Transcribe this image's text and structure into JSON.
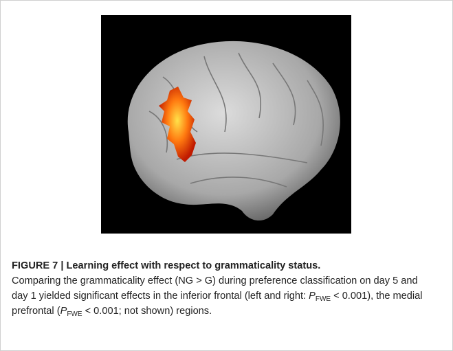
{
  "figure": {
    "label": "FIGURE 7 | Learning effect with respect to grammaticality status.",
    "caption": [
      {
        "text": "Comparing the grammaticality effect (NG > G) during preference classification on day 5 and day 1 yielded significant effects in the inferior frontal (left and right: "
      },
      {
        "italic": "P",
        "sub": "FWE"
      },
      {
        "text": " < 0.001), the medial prefrontal ("
      },
      {
        "italic": "P",
        "sub": "FWE"
      },
      {
        "text": " < 0.001; not shown) regions."
      }
    ]
  }
}
